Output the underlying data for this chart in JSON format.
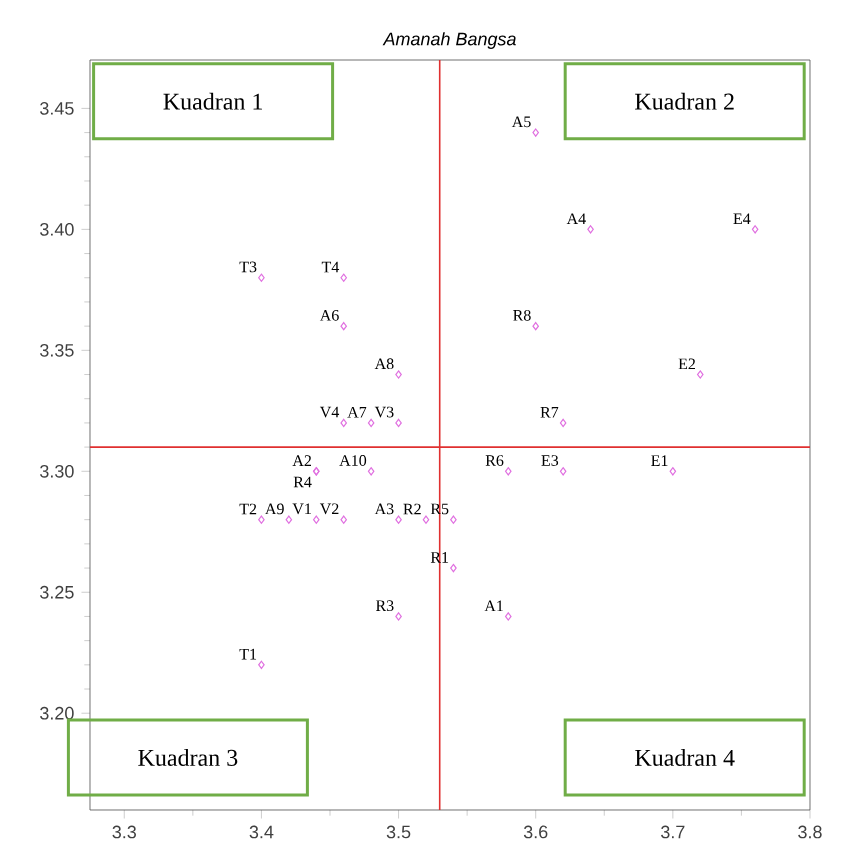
{
  "chart_data": {
    "type": "scatter",
    "title": "Amanah Bangsa",
    "x": [
      3.6,
      3.64,
      3.76,
      3.4,
      3.46,
      3.46,
      3.6,
      3.5,
      3.72,
      3.46,
      3.48,
      3.5,
      3.62,
      3.44,
      3.44,
      3.48,
      3.58,
      3.62,
      3.7,
      3.4,
      3.42,
      3.44,
      3.46,
      3.5,
      3.52,
      3.54,
      3.54,
      3.5,
      3.58,
      3.4
    ],
    "values": [
      3.44,
      3.4,
      3.4,
      3.38,
      3.38,
      3.36,
      3.36,
      3.34,
      3.34,
      3.32,
      3.32,
      3.32,
      3.32,
      3.3,
      3.3,
      3.3,
      3.3,
      3.3,
      3.3,
      3.28,
      3.28,
      3.28,
      3.28,
      3.28,
      3.28,
      3.28,
      3.26,
      3.24,
      3.24,
      3.22
    ],
    "color": "#e070e0",
    "marker": "diamond",
    "grid": false,
    "xlim": [
      3.275,
      3.8
    ],
    "xticks": [
      3.3,
      3.4,
      3.5,
      3.6,
      3.7,
      3.8
    ],
    "ylim": [
      3.16,
      3.47
    ],
    "yticks": [
      {
        "value": 3.2,
        "label": "3.20"
      },
      {
        "value": 3.25,
        "label": "3.25"
      },
      {
        "value": 3.3,
        "label": "3.30"
      },
      {
        "value": 3.35,
        "label": "3.35"
      },
      {
        "value": 3.4,
        "label": "3.40"
      },
      {
        "value": 3.45,
        "label": "3.45"
      }
    ],
    "ref_lines": [
      {
        "axis": "x",
        "value": 3.53,
        "color": "#e03030"
      },
      {
        "axis": "y",
        "value": 3.31,
        "color": "#e03030"
      }
    ],
    "annotations": [
      "Kuadran 1",
      "Kuadran 2",
      "Kuadran 3",
      "Kuadran 4",
      {
        "text": "A5",
        "x": 3.6,
        "y": 3.44
      },
      {
        "text": "A4",
        "x": 3.64,
        "y": 3.4
      },
      {
        "text": "E4",
        "x": 3.76,
        "y": 3.4
      },
      {
        "text": "T3",
        "x": 3.4,
        "y": 3.38
      },
      {
        "text": "T4",
        "x": 3.46,
        "y": 3.38
      },
      {
        "text": "A6",
        "x": 3.46,
        "y": 3.36
      },
      {
        "text": "R8",
        "x": 3.6,
        "y": 3.36
      },
      {
        "text": "A8",
        "x": 3.5,
        "y": 3.34
      },
      {
        "text": "E2",
        "x": 3.72,
        "y": 3.34
      },
      {
        "text": "V4",
        "x": 3.46,
        "y": 3.32
      },
      {
        "text": "A7",
        "x": 3.48,
        "y": 3.32
      },
      {
        "text": "V3",
        "x": 3.5,
        "y": 3.32
      },
      {
        "text": "R7",
        "x": 3.62,
        "y": 3.32
      },
      {
        "text": "A2",
        "x": 3.44,
        "y": 3.3
      },
      {
        "text": "R4",
        "x": 3.44,
        "y": 3.3
      },
      {
        "text": "A10",
        "x": 3.48,
        "y": 3.3
      },
      {
        "text": "R6",
        "x": 3.58,
        "y": 3.3
      },
      {
        "text": "E3",
        "x": 3.62,
        "y": 3.3
      },
      {
        "text": "E1",
        "x": 3.7,
        "y": 3.3
      },
      {
        "text": "T2",
        "x": 3.4,
        "y": 3.28
      },
      {
        "text": "A9",
        "x": 3.42,
        "y": 3.28
      },
      {
        "text": "V1",
        "x": 3.44,
        "y": 3.28
      },
      {
        "text": "V2",
        "x": 3.46,
        "y": 3.28
      },
      {
        "text": "A3",
        "x": 3.5,
        "y": 3.28
      },
      {
        "text": "R2",
        "x": 3.52,
        "y": 3.28
      },
      {
        "text": "R5",
        "x": 3.54,
        "y": 3.28
      },
      {
        "text": "R1",
        "x": 3.54,
        "y": 3.26
      },
      {
        "text": "R3",
        "x": 3.5,
        "y": 3.24
      },
      {
        "text": "A1",
        "x": 3.58,
        "y": 3.24
      },
      {
        "text": "T1",
        "x": 3.4,
        "y": 3.22
      }
    ]
  }
}
